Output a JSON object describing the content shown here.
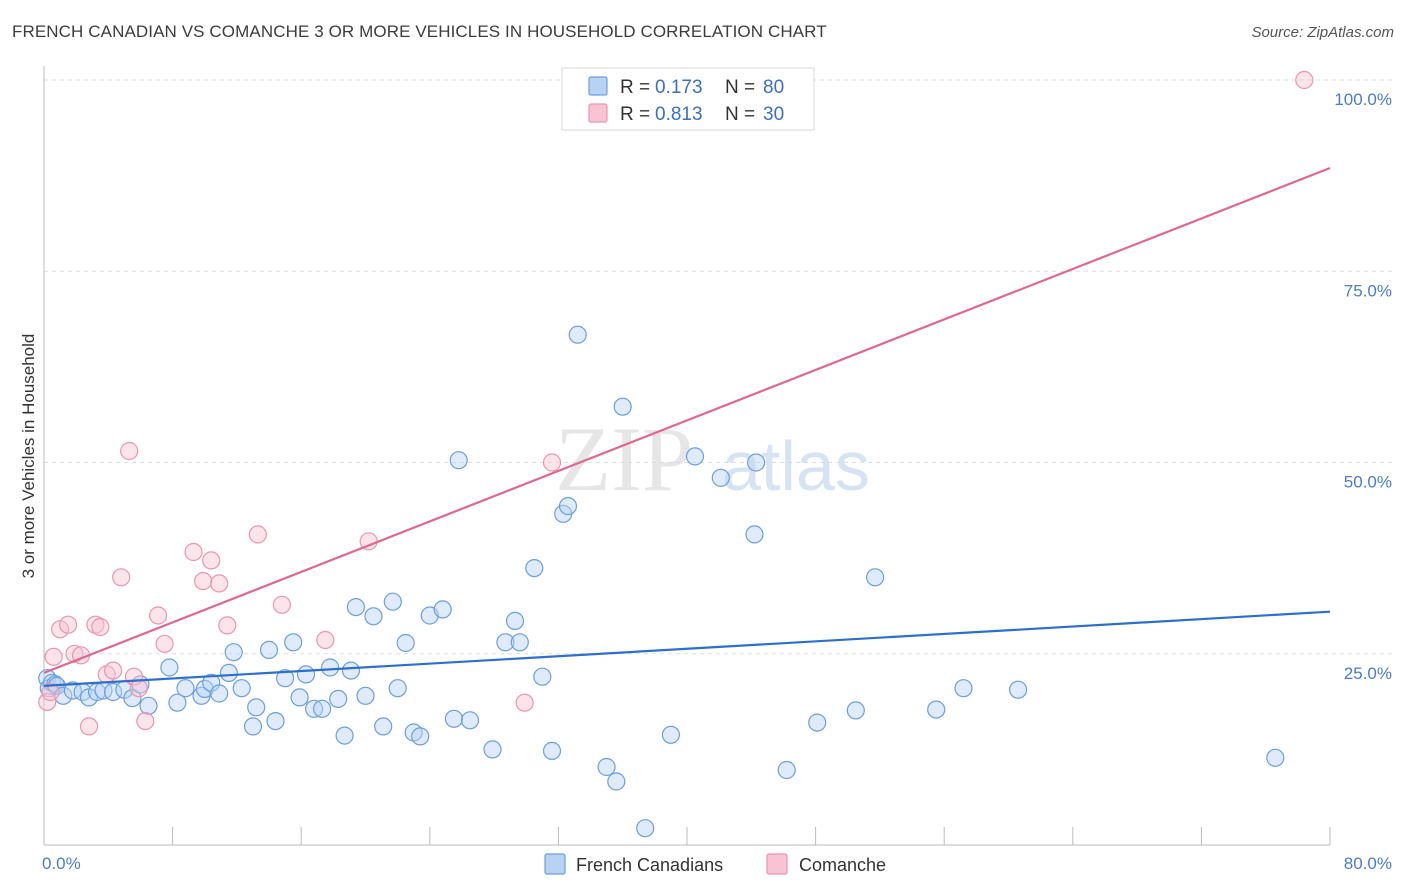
{
  "title": "FRENCH CANADIAN VS COMANCHE 3 OR MORE VEHICLES IN HOUSEHOLD CORRELATION CHART",
  "source": "Source: ZipAtlas.com",
  "watermark": {
    "zip": "ZIP",
    "atlas": "atlas"
  },
  "chart_data": {
    "type": "scatter",
    "ylabel": "3 or more Vehicles in Household",
    "xlim": [
      0,
      80
    ],
    "ylim": [
      0,
      100
    ],
    "x_tick_labels": [
      {
        "value": 0,
        "label": "0.0%"
      },
      {
        "value": 80,
        "label": "80.0%"
      }
    ],
    "y_tick_labels": [
      {
        "value": 25,
        "label": "25.0%"
      },
      {
        "value": 50,
        "label": "50.0%"
      },
      {
        "value": 75,
        "label": "75.0%"
      },
      {
        "value": 100,
        "label": "100.0%"
      }
    ],
    "grid": true,
    "legend": {
      "placement": "top-center",
      "entries": [
        {
          "r_label": "R =",
          "r_value": "0.173",
          "n_label": "N =",
          "n_value": "80"
        },
        {
          "r_label": "R =",
          "r_value": "0.813",
          "n_label": "N =",
          "n_value": "30"
        }
      ]
    },
    "series": [
      {
        "name": "French Canadians",
        "color": "#6a9fe0",
        "fill": "#b8d2f3",
        "trend_color": "#2d6fcc",
        "trend": [
          [
            0,
            20.8
          ],
          [
            80,
            30.5
          ]
        ],
        "points": [
          [
            0.2,
            21.8
          ],
          [
            0.3,
            20.5
          ],
          [
            0.5,
            21.2
          ],
          [
            0.7,
            21.0
          ],
          [
            0.8,
            20.8
          ],
          [
            1.2,
            19.5
          ],
          [
            1.8,
            20.2
          ],
          [
            2.4,
            20.0
          ],
          [
            2.8,
            19.3
          ],
          [
            3.3,
            20.0
          ],
          [
            3.7,
            20.2
          ],
          [
            4.3,
            20.0
          ],
          [
            5.0,
            20.3
          ],
          [
            5.5,
            19.2
          ],
          [
            6.0,
            21.0
          ],
          [
            6.5,
            18.2
          ],
          [
            7.8,
            23.2
          ],
          [
            8.3,
            18.6
          ],
          [
            8.8,
            20.5
          ],
          [
            9.8,
            19.5
          ],
          [
            10.0,
            20.4
          ],
          [
            10.4,
            21.2
          ],
          [
            10.9,
            19.8
          ],
          [
            11.5,
            22.5
          ],
          [
            11.8,
            25.2
          ],
          [
            12.3,
            20.5
          ],
          [
            13.0,
            15.5
          ],
          [
            13.2,
            18.0
          ],
          [
            14.0,
            25.5
          ],
          [
            14.4,
            16.2
          ],
          [
            15.0,
            21.8
          ],
          [
            15.5,
            26.5
          ],
          [
            15.9,
            19.3
          ],
          [
            16.3,
            22.3
          ],
          [
            16.8,
            17.8
          ],
          [
            17.3,
            17.8
          ],
          [
            17.8,
            23.2
          ],
          [
            18.3,
            19.1
          ],
          [
            18.7,
            14.3
          ],
          [
            19.1,
            22.8
          ],
          [
            19.4,
            31.1
          ],
          [
            20.0,
            19.5
          ],
          [
            20.5,
            29.9
          ],
          [
            21.1,
            15.5
          ],
          [
            21.7,
            31.8
          ],
          [
            22.0,
            20.5
          ],
          [
            22.5,
            26.4
          ],
          [
            23.0,
            14.7
          ],
          [
            23.4,
            14.2
          ],
          [
            24.0,
            30.0
          ],
          [
            24.8,
            30.8
          ],
          [
            25.5,
            16.5
          ],
          [
            25.8,
            50.3
          ],
          [
            26.5,
            16.3
          ],
          [
            27.9,
            12.5
          ],
          [
            28.7,
            26.5
          ],
          [
            29.3,
            29.3
          ],
          [
            29.6,
            26.5
          ],
          [
            30.5,
            36.2
          ],
          [
            31.0,
            22.0
          ],
          [
            31.6,
            12.3
          ],
          [
            32.3,
            43.3
          ],
          [
            32.6,
            44.3
          ],
          [
            33.2,
            66.7
          ],
          [
            35.0,
            10.2
          ],
          [
            35.6,
            8.3
          ],
          [
            36.0,
            57.3
          ],
          [
            37.4,
            2.2
          ],
          [
            39.0,
            14.4
          ],
          [
            40.5,
            50.8
          ],
          [
            42.1,
            48.0
          ],
          [
            44.2,
            40.6
          ],
          [
            44.3,
            50.0
          ],
          [
            46.2,
            9.8
          ],
          [
            48.1,
            16.0
          ],
          [
            50.5,
            17.6
          ],
          [
            51.7,
            35.0
          ],
          [
            55.5,
            17.7
          ],
          [
            57.2,
            20.5
          ],
          [
            60.6,
            20.3
          ],
          [
            76.6,
            11.4
          ]
        ]
      },
      {
        "name": "Comanche",
        "color": "#ec94ae",
        "fill": "#f8c3d3",
        "trend_color": "#e0678d",
        "trend": [
          [
            0,
            22.5
          ],
          [
            80,
            88.5
          ]
        ],
        "points": [
          [
            0.2,
            18.7
          ],
          [
            0.4,
            20.0
          ],
          [
            0.6,
            24.6
          ],
          [
            1.0,
            28.2
          ],
          [
            1.5,
            28.8
          ],
          [
            1.9,
            25.0
          ],
          [
            2.3,
            24.8
          ],
          [
            2.8,
            15.5
          ],
          [
            3.2,
            28.8
          ],
          [
            3.5,
            28.5
          ],
          [
            3.9,
            22.3
          ],
          [
            4.3,
            22.8
          ],
          [
            4.8,
            35.0
          ],
          [
            5.3,
            51.5
          ],
          [
            5.6,
            22.0
          ],
          [
            5.9,
            20.5
          ],
          [
            6.3,
            16.2
          ],
          [
            7.1,
            30.0
          ],
          [
            7.5,
            26.3
          ],
          [
            9.3,
            38.3
          ],
          [
            9.9,
            34.5
          ],
          [
            10.4,
            37.2
          ],
          [
            10.9,
            34.2
          ],
          [
            11.4,
            28.7
          ],
          [
            13.3,
            40.6
          ],
          [
            14.8,
            31.4
          ],
          [
            17.5,
            26.8
          ],
          [
            20.2,
            39.7
          ],
          [
            29.9,
            18.6
          ],
          [
            31.6,
            50.0
          ],
          [
            78.4,
            100.0
          ]
        ]
      }
    ]
  }
}
